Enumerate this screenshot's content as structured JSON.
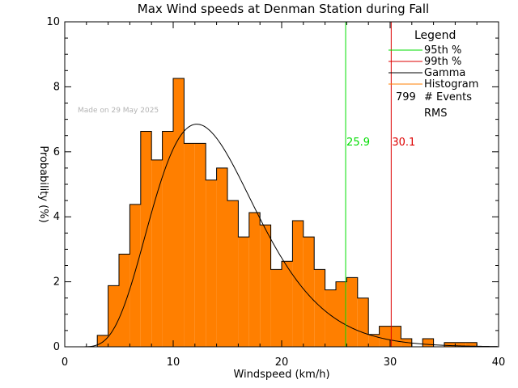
{
  "chart_data": {
    "type": "bar",
    "title": "Max Wind speeds at Denman Station during Fall",
    "xlabel": "Windspeed (km/h)",
    "ylabel": "Probability (%)",
    "xlim": [
      0,
      40
    ],
    "ylim": [
      0,
      10
    ],
    "x_ticks": [
      "0",
      "10",
      "20",
      "30",
      "40"
    ],
    "y_ticks": [
      "0",
      "2",
      "4",
      "6",
      "8",
      "10"
    ],
    "bin_width": 1,
    "bins": [
      {
        "x": 3,
        "value": 0.35
      },
      {
        "x": 4,
        "value": 1.88
      },
      {
        "x": 5,
        "value": 2.85
      },
      {
        "x": 6,
        "value": 4.38
      },
      {
        "x": 7,
        "value": 6.63
      },
      {
        "x": 8,
        "value": 5.75
      },
      {
        "x": 9,
        "value": 6.63
      },
      {
        "x": 10,
        "value": 8.26
      },
      {
        "x": 11,
        "value": 6.26
      },
      {
        "x": 12,
        "value": 6.26
      },
      {
        "x": 13,
        "value": 5.13
      },
      {
        "x": 14,
        "value": 5.5
      },
      {
        "x": 15,
        "value": 4.5
      },
      {
        "x": 16,
        "value": 3.38
      },
      {
        "x": 17,
        "value": 4.13
      },
      {
        "x": 18,
        "value": 3.75
      },
      {
        "x": 19,
        "value": 2.38
      },
      {
        "x": 20,
        "value": 2.63
      },
      {
        "x": 21,
        "value": 3.88
      },
      {
        "x": 22,
        "value": 3.38
      },
      {
        "x": 23,
        "value": 2.38
      },
      {
        "x": 24,
        "value": 1.75
      },
      {
        "x": 25,
        "value": 2.0
      },
      {
        "x": 26,
        "value": 2.13
      },
      {
        "x": 27,
        "value": 1.5
      },
      {
        "x": 28,
        "value": 0.38
      },
      {
        "x": 29,
        "value": 0.63
      },
      {
        "x": 30,
        "value": 0.63
      },
      {
        "x": 31,
        "value": 0.25
      },
      {
        "x": 32,
        "value": 0.0
      },
      {
        "x": 33,
        "value": 0.25
      },
      {
        "x": 34,
        "value": 0.0
      },
      {
        "x": 35,
        "value": 0.13
      },
      {
        "x": 36,
        "value": 0.13
      },
      {
        "x": 37,
        "value": 0.13
      }
    ],
    "gamma_curve": {
      "shape": 6.5,
      "scale": 2.05,
      "offset": 0.9,
      "peak_x": 11.6,
      "peak_value": 6.8
    },
    "percentiles": [
      {
        "name": "95th %",
        "value": 25.9,
        "label": "25.9",
        "color": "#00dd00"
      },
      {
        "name": "99th %",
        "value": 30.1,
        "label": "30.1",
        "color": "#dd0000"
      }
    ],
    "colors": {
      "histogram": "#ff7f00",
      "histogram_edge": "#000000",
      "gamma": "#000000"
    },
    "legend": {
      "title": "Legend",
      "placement": "top-right",
      "entries": [
        {
          "label": "95th %",
          "color": "#00dd00"
        },
        {
          "label": "99th %",
          "color": "#dd0000"
        },
        {
          "label": "Gamma",
          "color": "#000000"
        },
        {
          "label": "Histogram",
          "color": "#ff7f00"
        }
      ],
      "events_count": "799",
      "events_label": "# Events",
      "rms_label": "RMS"
    },
    "stamp": "Made on 29 May 2025",
    "grid": false
  }
}
